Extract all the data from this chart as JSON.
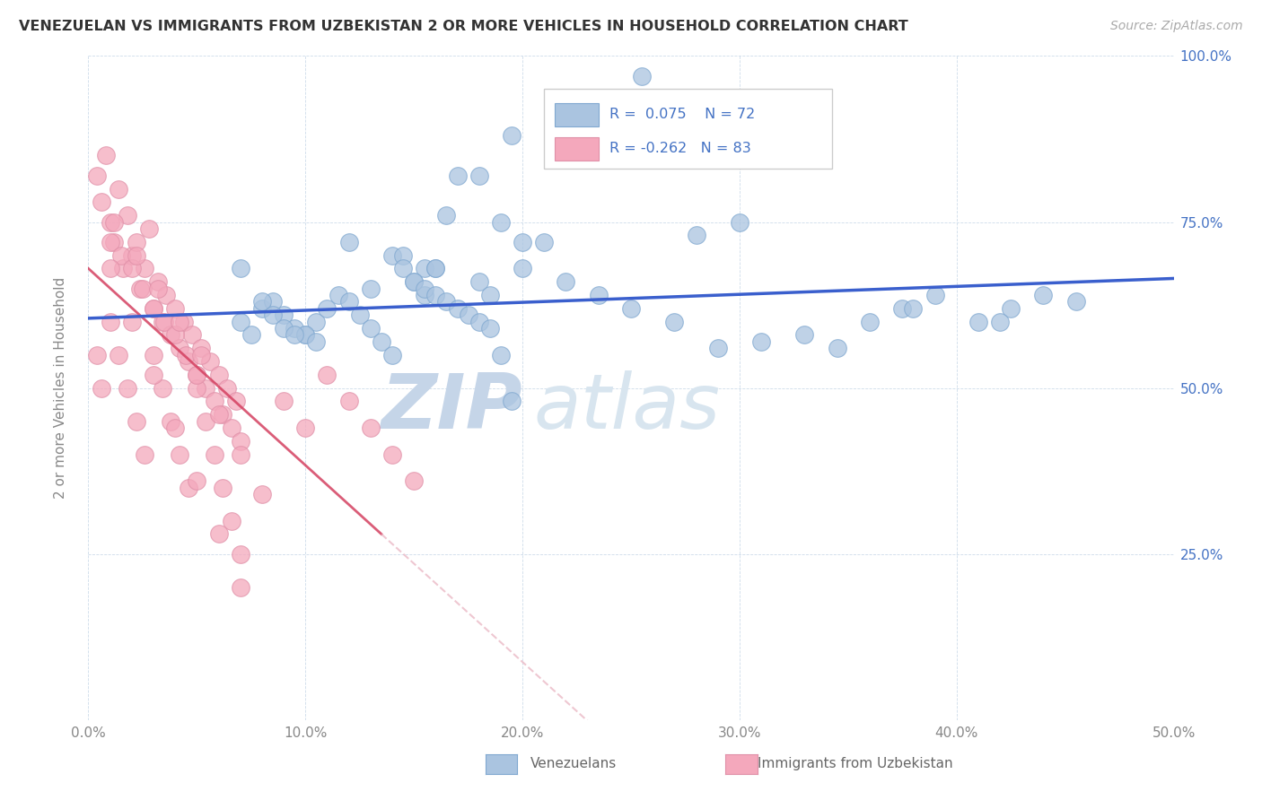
{
  "title": "VENEZUELAN VS IMMIGRANTS FROM UZBEKISTAN 2 OR MORE VEHICLES IN HOUSEHOLD CORRELATION CHART",
  "source": "Source: ZipAtlas.com",
  "ylabel": "2 or more Vehicles in Household",
  "xlim": [
    0.0,
    0.5
  ],
  "ylim": [
    0.0,
    1.0
  ],
  "xtick_labels": [
    "0.0%",
    "10.0%",
    "20.0%",
    "30.0%",
    "40.0%",
    "50.0%"
  ],
  "xtick_values": [
    0.0,
    0.1,
    0.2,
    0.3,
    0.4,
    0.5
  ],
  "ytick_labels": [
    "25.0%",
    "50.0%",
    "75.0%",
    "100.0%"
  ],
  "ytick_values": [
    0.25,
    0.5,
    0.75,
    1.0
  ],
  "r_venezuelan": 0.075,
  "n_venezuelan": 72,
  "r_uzbekistan": -0.262,
  "n_uzbekistan": 83,
  "venezuelan_color": "#aac4e0",
  "uzbekistan_color": "#f4a8bc",
  "trendline_venezuelan_color": "#3a5fcd",
  "trendline_uzbekistan_solid": "#d44060",
  "trendline_uzbekistan_dashed": "#e8b0be",
  "watermark_color": "#d0dff0",
  "background_color": "#ffffff",
  "venezuelan_x": [
    0.255,
    0.195,
    0.07,
    0.18,
    0.28,
    0.3,
    0.2,
    0.155,
    0.17,
    0.16,
    0.165,
    0.14,
    0.12,
    0.13,
    0.145,
    0.16,
    0.18,
    0.185,
    0.19,
    0.2,
    0.21,
    0.22,
    0.235,
    0.25,
    0.27,
    0.29,
    0.31,
    0.33,
    0.345,
    0.36,
    0.375,
    0.39,
    0.41,
    0.425,
    0.44,
    0.455,
    0.1,
    0.105,
    0.11,
    0.115,
    0.12,
    0.125,
    0.13,
    0.135,
    0.14,
    0.145,
    0.15,
    0.155,
    0.07,
    0.075,
    0.08,
    0.085,
    0.09,
    0.095,
    0.1,
    0.105,
    0.38,
    0.42,
    0.08,
    0.085,
    0.09,
    0.095,
    0.15,
    0.155,
    0.16,
    0.165,
    0.17,
    0.175,
    0.18,
    0.185,
    0.19,
    0.195
  ],
  "venezuelan_y": [
    0.97,
    0.88,
    0.68,
    0.82,
    0.73,
    0.75,
    0.72,
    0.68,
    0.82,
    0.68,
    0.76,
    0.7,
    0.72,
    0.65,
    0.7,
    0.68,
    0.66,
    0.64,
    0.75,
    0.68,
    0.72,
    0.66,
    0.64,
    0.62,
    0.6,
    0.56,
    0.57,
    0.58,
    0.56,
    0.6,
    0.62,
    0.64,
    0.6,
    0.62,
    0.64,
    0.63,
    0.58,
    0.6,
    0.62,
    0.64,
    0.63,
    0.61,
    0.59,
    0.57,
    0.55,
    0.68,
    0.66,
    0.64,
    0.6,
    0.58,
    0.62,
    0.63,
    0.61,
    0.59,
    0.58,
    0.57,
    0.62,
    0.6,
    0.63,
    0.61,
    0.59,
    0.58,
    0.66,
    0.65,
    0.64,
    0.63,
    0.62,
    0.61,
    0.6,
    0.59,
    0.55,
    0.48
  ],
  "uzbekistan_x": [
    0.004,
    0.006,
    0.008,
    0.01,
    0.012,
    0.014,
    0.016,
    0.018,
    0.02,
    0.022,
    0.024,
    0.026,
    0.028,
    0.03,
    0.032,
    0.034,
    0.036,
    0.038,
    0.04,
    0.042,
    0.044,
    0.046,
    0.048,
    0.05,
    0.052,
    0.054,
    0.056,
    0.058,
    0.06,
    0.062,
    0.064,
    0.066,
    0.068,
    0.07,
    0.004,
    0.006,
    0.01,
    0.014,
    0.018,
    0.022,
    0.026,
    0.03,
    0.034,
    0.038,
    0.042,
    0.046,
    0.05,
    0.054,
    0.058,
    0.062,
    0.066,
    0.07,
    0.01,
    0.015,
    0.02,
    0.025,
    0.03,
    0.035,
    0.04,
    0.045,
    0.05,
    0.06,
    0.07,
    0.08,
    0.09,
    0.1,
    0.11,
    0.12,
    0.13,
    0.14,
    0.15,
    0.01,
    0.02,
    0.03,
    0.04,
    0.05,
    0.06,
    0.07,
    0.012,
    0.022,
    0.032,
    0.042,
    0.052
  ],
  "uzbekistan_y": [
    0.82,
    0.78,
    0.85,
    0.75,
    0.72,
    0.8,
    0.68,
    0.76,
    0.7,
    0.72,
    0.65,
    0.68,
    0.74,
    0.62,
    0.66,
    0.6,
    0.64,
    0.58,
    0.62,
    0.56,
    0.6,
    0.54,
    0.58,
    0.52,
    0.56,
    0.5,
    0.54,
    0.48,
    0.52,
    0.46,
    0.5,
    0.44,
    0.48,
    0.42,
    0.55,
    0.5,
    0.6,
    0.55,
    0.5,
    0.45,
    0.4,
    0.55,
    0.5,
    0.45,
    0.4,
    0.35,
    0.5,
    0.45,
    0.4,
    0.35,
    0.3,
    0.25,
    0.72,
    0.7,
    0.68,
    0.65,
    0.62,
    0.6,
    0.58,
    0.55,
    0.52,
    0.46,
    0.4,
    0.34,
    0.48,
    0.44,
    0.52,
    0.48,
    0.44,
    0.4,
    0.36,
    0.68,
    0.6,
    0.52,
    0.44,
    0.36,
    0.28,
    0.2,
    0.75,
    0.7,
    0.65,
    0.6,
    0.55
  ]
}
